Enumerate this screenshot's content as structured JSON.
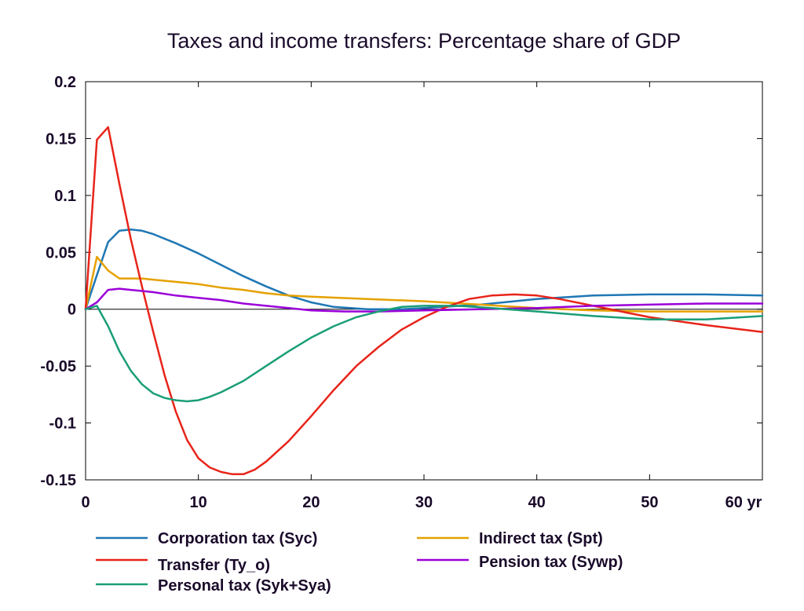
{
  "chart_data": {
    "type": "line",
    "title": "Taxes and income transfers: Percentage share of GDP",
    "xlabel": "",
    "ylabel": "",
    "xlim": [
      0,
      60
    ],
    "ylim": [
      -0.15,
      0.2
    ],
    "x_ticks": [
      0,
      10,
      20,
      30,
      40,
      50,
      60
    ],
    "x_tick_labels": [
      "0",
      "10",
      "20",
      "30",
      "40",
      "50",
      "60 yr"
    ],
    "y_ticks": [
      0.2,
      0.15,
      0.1,
      0.05,
      0,
      -0.05,
      -0.1,
      -0.15
    ],
    "y_tick_labels": [
      "0.2",
      "0.15",
      "0.1",
      "0.05",
      "0",
      "-0.05",
      "-0.1",
      "-0.15"
    ],
    "grid": false,
    "legend_position": "bottom",
    "series": [
      {
        "name": "Corporation tax (Syc)",
        "color": "#1f77b4",
        "points": [
          [
            0,
            0
          ],
          [
            1,
            0.03
          ],
          [
            2,
            0.059
          ],
          [
            3,
            0.069
          ],
          [
            4,
            0.07
          ],
          [
            5,
            0.069
          ],
          [
            6,
            0.066
          ],
          [
            8,
            0.058
          ],
          [
            10,
            0.049
          ],
          [
            12,
            0.039
          ],
          [
            14,
            0.029
          ],
          [
            16,
            0.02
          ],
          [
            18,
            0.012
          ],
          [
            20,
            0.006
          ],
          [
            22,
            0.002
          ],
          [
            25,
            0.0
          ],
          [
            28,
            0.0
          ],
          [
            30,
            0.001
          ],
          [
            35,
            0.004
          ],
          [
            40,
            0.009
          ],
          [
            45,
            0.012
          ],
          [
            50,
            0.013
          ],
          [
            55,
            0.013
          ],
          [
            60,
            0.012
          ]
        ]
      },
      {
        "name": "Indirect tax (Spt)",
        "color": "#e5a100",
        "points": [
          [
            0,
            0
          ],
          [
            1,
            0.046
          ],
          [
            2,
            0.034
          ],
          [
            3,
            0.027
          ],
          [
            4,
            0.027
          ],
          [
            5,
            0.027
          ],
          [
            6,
            0.026
          ],
          [
            8,
            0.024
          ],
          [
            10,
            0.022
          ],
          [
            12,
            0.019
          ],
          [
            14,
            0.017
          ],
          [
            16,
            0.014
          ],
          [
            18,
            0.012
          ],
          [
            20,
            0.011
          ],
          [
            25,
            0.009
          ],
          [
            30,
            0.007
          ],
          [
            35,
            0.004
          ],
          [
            40,
            0.001
          ],
          [
            45,
            -0.001
          ],
          [
            50,
            -0.002
          ],
          [
            55,
            -0.002
          ],
          [
            60,
            -0.002
          ]
        ]
      },
      {
        "name": "Transfer (Ty_o)",
        "color": "#e8241a",
        "points": [
          [
            0,
            0
          ],
          [
            1,
            0.149
          ],
          [
            2,
            0.16
          ],
          [
            3,
            0.11
          ],
          [
            4,
            0.062
          ],
          [
            5,
            0.02
          ],
          [
            6,
            -0.02
          ],
          [
            7,
            -0.058
          ],
          [
            8,
            -0.09
          ],
          [
            9,
            -0.115
          ],
          [
            10,
            -0.131
          ],
          [
            11,
            -0.139
          ],
          [
            12,
            -0.143
          ],
          [
            13,
            -0.145
          ],
          [
            14,
            -0.145
          ],
          [
            15,
            -0.141
          ],
          [
            16,
            -0.134
          ],
          [
            18,
            -0.116
          ],
          [
            20,
            -0.094
          ],
          [
            22,
            -0.071
          ],
          [
            24,
            -0.05
          ],
          [
            26,
            -0.033
          ],
          [
            28,
            -0.018
          ],
          [
            30,
            -0.007
          ],
          [
            32,
            0.002
          ],
          [
            34,
            0.009
          ],
          [
            36,
            0.012
          ],
          [
            38,
            0.013
          ],
          [
            40,
            0.012
          ],
          [
            42,
            0.009
          ],
          [
            45,
            0.003
          ],
          [
            48,
            -0.003
          ],
          [
            50,
            -0.007
          ],
          [
            55,
            -0.014
          ],
          [
            60,
            -0.02
          ]
        ]
      },
      {
        "name": "Pension tax (Sywp)",
        "color": "#9b00d9",
        "points": [
          [
            0,
            0
          ],
          [
            1,
            0.006
          ],
          [
            2,
            0.017
          ],
          [
            3,
            0.018
          ],
          [
            4,
            0.017
          ],
          [
            5,
            0.016
          ],
          [
            6,
            0.015
          ],
          [
            8,
            0.012
          ],
          [
            10,
            0.01
          ],
          [
            12,
            0.008
          ],
          [
            14,
            0.005
          ],
          [
            16,
            0.003
          ],
          [
            18,
            0.001
          ],
          [
            20,
            -0.001
          ],
          [
            23,
            -0.002
          ],
          [
            26,
            -0.002
          ],
          [
            30,
            -0.001
          ],
          [
            35,
            0.0
          ],
          [
            40,
            0.001
          ],
          [
            45,
            0.003
          ],
          [
            50,
            0.004
          ],
          [
            55,
            0.005
          ],
          [
            60,
            0.005
          ]
        ]
      },
      {
        "name": "Personal tax (Syk+Sya)",
        "color": "#1a9e77",
        "points": [
          [
            0,
            0
          ],
          [
            1,
            0.003
          ],
          [
            2,
            -0.015
          ],
          [
            3,
            -0.037
          ],
          [
            4,
            -0.054
          ],
          [
            5,
            -0.066
          ],
          [
            6,
            -0.074
          ],
          [
            7,
            -0.078
          ],
          [
            8,
            -0.08
          ],
          [
            9,
            -0.081
          ],
          [
            10,
            -0.08
          ],
          [
            11,
            -0.077
          ],
          [
            12,
            -0.073
          ],
          [
            14,
            -0.063
          ],
          [
            16,
            -0.05
          ],
          [
            18,
            -0.037
          ],
          [
            20,
            -0.025
          ],
          [
            22,
            -0.015
          ],
          [
            24,
            -0.007
          ],
          [
            26,
            -0.002
          ],
          [
            28,
            0.002
          ],
          [
            30,
            0.003
          ],
          [
            33,
            0.003
          ],
          [
            36,
            0.001
          ],
          [
            40,
            -0.002
          ],
          [
            45,
            -0.006
          ],
          [
            50,
            -0.009
          ],
          [
            55,
            -0.009
          ],
          [
            60,
            -0.006
          ]
        ]
      }
    ]
  },
  "legend": {
    "entries": [
      {
        "label": "Corporation tax (Syc)",
        "color": "#1f77b4"
      },
      {
        "label": "Transfer (Ty_o)",
        "color": "#e8241a"
      },
      {
        "label": "Personal tax (Syk+Sya)",
        "color": "#1a9e77"
      },
      {
        "label": "Indirect tax (Spt)",
        "color": "#e5a100"
      },
      {
        "label": "Pension tax (Sywp)",
        "color": "#9b00d9"
      }
    ]
  }
}
